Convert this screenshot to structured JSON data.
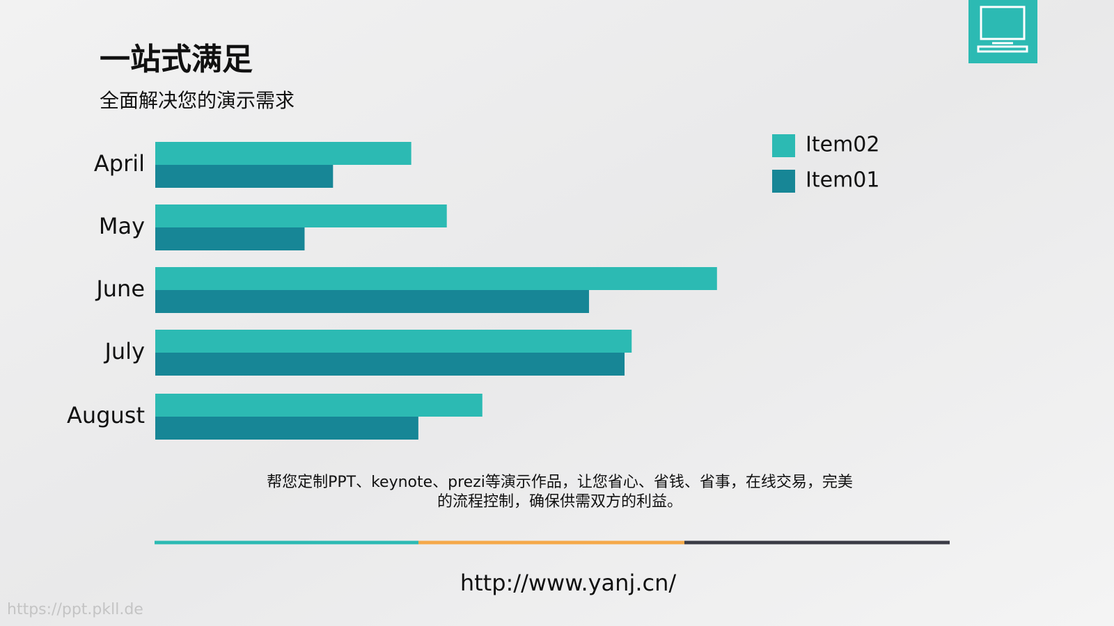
{
  "header": {
    "title": "一站式满足",
    "subtitle": "全面解决您的演示需求"
  },
  "chart_data": {
    "type": "hbar",
    "categories": [
      "April",
      "May",
      "June",
      "July",
      "August"
    ],
    "series": [
      {
        "name": "Item02",
        "color": "#2cbab3",
        "values": [
          3.6,
          4.1,
          7.9,
          6.7,
          4.6
        ]
      },
      {
        "name": "Item01",
        "color": "#178696",
        "values": [
          2.5,
          2.1,
          6.1,
          6.6,
          3.7
        ]
      }
    ],
    "xlim": [
      0,
      8
    ],
    "legend": "top-right"
  },
  "description": [
    "帮您定制PPT、keynote、prezi等演示作品，让您省心、省钱、省事，在线交易，完美",
    "的流程控制，确保供需双方的利益。"
  ],
  "url": "http://www.yanj.cn/",
  "watermark": "https://ppt.pkll.de"
}
